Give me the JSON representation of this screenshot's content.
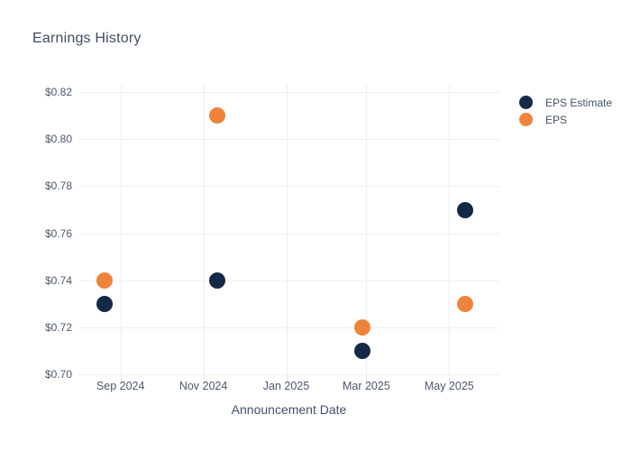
{
  "chart_data": {
    "type": "scatter",
    "title": "Earnings History",
    "xlabel": "Announcement Date",
    "ylabel": "",
    "grid": true,
    "legend_position": "right-top",
    "ylim": [
      0.699,
      0.823
    ],
    "y_ticks": [
      0.7,
      0.72,
      0.74,
      0.76,
      0.78,
      0.8,
      0.82
    ],
    "y_tick_labels": [
      "$0.70",
      "$0.72",
      "$0.74",
      "$0.76",
      "$0.78",
      "$0.80",
      "$0.82"
    ],
    "x_range": [
      "2024-08-01",
      "2025-06-07"
    ],
    "x_tick_dates": [
      "2024-09-01",
      "2024-11-01",
      "2025-01-01",
      "2025-03-01",
      "2025-05-01"
    ],
    "x_tick_labels": [
      "Sep 2024",
      "Nov 2024",
      "Jan 2025",
      "Mar 2025",
      "May 2025"
    ],
    "series": [
      {
        "name": "EPS Estimate",
        "color": "#142947",
        "points": [
          {
            "x": "2024-08-20",
            "y": 0.73
          },
          {
            "x": "2024-11-11",
            "y": 0.74
          },
          {
            "x": "2025-02-26",
            "y": 0.71
          },
          {
            "x": "2025-05-13",
            "y": 0.77
          }
        ]
      },
      {
        "name": "EPS",
        "color": "#f0833c",
        "points": [
          {
            "x": "2024-08-20",
            "y": 0.74
          },
          {
            "x": "2024-11-11",
            "y": 0.81
          },
          {
            "x": "2025-02-26",
            "y": 0.72
          },
          {
            "x": "2025-05-13",
            "y": 0.73
          }
        ]
      }
    ]
  }
}
